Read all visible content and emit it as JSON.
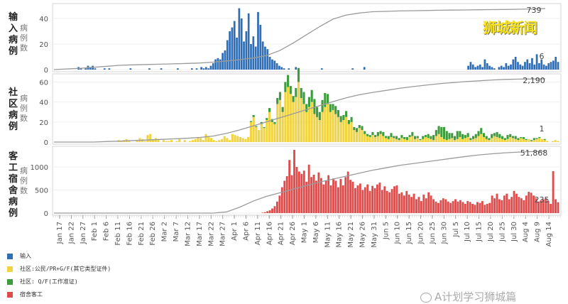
{
  "brand": "狮城新闻",
  "watermark": "A计划学习狮城篇",
  "colors": {
    "import": "#2f6eb5",
    "community_local": "#f0d443",
    "community_wp": "#3e9b3e",
    "dorm": "#de4b4b",
    "cumulative": "#9a9a9a"
  },
  "legend": [
    {
      "label": "输入",
      "color": "#2f6eb5"
    },
    {
      "label": "社区:公民/PR+G/F(其它类型证件)",
      "color": "#f0d443"
    },
    {
      "label": "社区: Q/F(工作准证)",
      "color": "#3e9b3e"
    },
    {
      "label": "宿舍客工",
      "color": "#de4b4b"
    }
  ],
  "chart_data": [
    {
      "type": "bar",
      "title": "输入病例",
      "ylabel": "病例数",
      "yticks": [
        0,
        20,
        40
      ],
      "ylim": [
        0,
        50
      ],
      "cumulative_label": "739",
      "last_value_label": "6",
      "x_start": "Jan 15",
      "x_end": "Aug 17",
      "series": [
        {
          "key": "import",
          "values": [
            0,
            0,
            0,
            0,
            0,
            0,
            0,
            0,
            0,
            0,
            2,
            1,
            0,
            1,
            3,
            2,
            3,
            1,
            0,
            0,
            0,
            1,
            0,
            1,
            0,
            0,
            0,
            0,
            0,
            0,
            0,
            0,
            1,
            0,
            0,
            0,
            0,
            0,
            0,
            0,
            1,
            0,
            0,
            0,
            0,
            1,
            0,
            0,
            0,
            0,
            0,
            0,
            1,
            0,
            0,
            0,
            0,
            0,
            1,
            0,
            1,
            0,
            2,
            1,
            2,
            1,
            3,
            5,
            8,
            9,
            8,
            13,
            15,
            23,
            30,
            33,
            38,
            25,
            48,
            40,
            22,
            30,
            44,
            20,
            26,
            18,
            45,
            35,
            22,
            18,
            16,
            10,
            8,
            7,
            5,
            3,
            2,
            1,
            0,
            1,
            0,
            0,
            2,
            0,
            0,
            0,
            0,
            0,
            0,
            0,
            0,
            0,
            0,
            1,
            0,
            0,
            0,
            0,
            0,
            0,
            0,
            0,
            0,
            0,
            0,
            0,
            1,
            0,
            0,
            0,
            0,
            2,
            0,
            0,
            0,
            0,
            0,
            0,
            0,
            0,
            0,
            0,
            0,
            0,
            0,
            0,
            0,
            0,
            0,
            0,
            0,
            0,
            0,
            0,
            0,
            0,
            0,
            0,
            0,
            0,
            0,
            0,
            0,
            0,
            0,
            0,
            0,
            0,
            0,
            0,
            0,
            0,
            0,
            0,
            0,
            3,
            6,
            4,
            2,
            3,
            4,
            2,
            8,
            5,
            3,
            2,
            1,
            0,
            2,
            3,
            2,
            5,
            3,
            4,
            8,
            10,
            6,
            4,
            3,
            6,
            8,
            5,
            9,
            4,
            12,
            5,
            8,
            4,
            3,
            5,
            6,
            7,
            10,
            6
          ]
        }
      ],
      "cumulative": [
        0,
        9,
        16,
        28,
        40,
        52,
        58,
        62,
        65,
        70,
        75,
        80,
        90,
        105,
        120,
        140,
        170,
        230,
        320,
        420,
        520,
        610,
        660,
        685,
        700,
        705,
        710,
        712,
        715,
        718,
        720,
        722,
        724,
        726,
        728,
        730,
        734,
        739
      ]
    },
    {
      "type": "bar",
      "title": "社区病例",
      "ylabel": "病例数",
      "yticks": [
        0,
        20,
        40,
        60
      ],
      "ylim": [
        0,
        66
      ],
      "cumulative_label": "2,190",
      "last_value_label": "1",
      "x_start": "Jan 15",
      "x_end": "Aug 17",
      "series": [
        {
          "key": "community_local",
          "values": [
            0,
            0,
            0,
            0,
            0,
            0,
            0,
            0,
            0,
            0,
            0,
            0,
            0,
            0,
            0,
            0,
            0,
            0,
            0,
            0,
            0,
            0,
            0,
            0,
            2,
            1,
            2,
            3,
            1,
            0,
            0,
            2,
            4,
            3,
            1,
            7,
            8,
            2,
            4,
            3,
            0,
            2,
            1,
            1,
            2,
            0,
            1,
            3,
            0,
            2,
            0,
            1,
            2,
            3,
            5,
            4,
            2,
            8,
            6,
            4,
            2,
            1,
            2,
            3,
            6,
            4,
            2,
            8,
            7,
            6,
            5,
            4,
            3,
            5,
            20,
            25,
            15,
            12,
            18,
            14,
            22,
            30,
            20,
            18,
            38,
            42,
            30,
            50,
            55,
            48,
            40,
            45,
            60,
            44,
            38,
            30,
            35,
            40,
            28,
            25,
            22,
            30,
            35,
            38,
            30,
            32,
            28,
            25,
            20,
            22,
            25,
            18,
            20,
            12,
            10,
            14,
            12,
            8,
            6,
            5,
            7,
            5,
            6,
            8,
            6,
            4,
            3,
            5,
            4,
            3,
            2,
            4,
            3,
            2,
            5,
            6,
            3,
            4,
            2,
            3,
            5,
            4,
            3,
            2,
            6,
            8,
            5,
            3,
            2,
            3,
            4,
            2,
            3,
            5,
            3,
            4,
            5,
            2,
            3,
            4,
            6,
            8,
            5,
            3,
            2,
            4,
            6,
            5,
            4,
            3,
            2,
            3,
            5,
            4,
            3,
            2,
            4,
            3,
            2,
            3,
            1,
            2,
            3,
            4,
            3,
            2,
            1,
            0,
            1,
            2,
            1
          ]
        },
        {
          "key": "community_wp",
          "values": [
            0,
            0,
            0,
            0,
            0,
            0,
            0,
            0,
            0,
            0,
            0,
            0,
            0,
            0,
            0,
            0,
            0,
            0,
            0,
            0,
            0,
            0,
            0,
            0,
            0,
            0,
            0,
            0,
            0,
            0,
            0,
            0,
            0,
            0,
            0,
            0,
            0,
            0,
            0,
            0,
            0,
            0,
            0,
            0,
            0,
            0,
            0,
            0,
            0,
            0,
            0,
            0,
            0,
            0,
            0,
            0,
            0,
            0,
            0,
            0,
            0,
            0,
            0,
            0,
            0,
            0,
            0,
            0,
            0,
            0,
            0,
            0,
            0,
            0,
            1,
            2,
            1,
            0,
            2,
            1,
            2,
            4,
            3,
            2,
            6,
            8,
            5,
            10,
            12,
            8,
            6,
            9,
            14,
            10,
            12,
            8,
            10,
            12,
            15,
            10,
            8,
            12,
            14,
            10,
            8,
            6,
            8,
            7,
            6,
            5,
            6,
            4,
            5,
            3,
            4,
            3,
            4,
            3,
            2,
            2,
            3,
            2,
            4,
            3,
            4,
            2,
            3,
            4,
            2,
            3,
            2,
            3,
            2,
            3,
            2,
            4,
            3,
            2,
            1,
            3,
            2,
            4,
            3,
            5,
            6,
            8,
            10,
            12,
            9,
            6,
            5,
            4,
            8,
            6,
            5,
            3,
            4,
            2,
            3,
            4,
            5,
            6,
            4,
            3,
            2,
            4,
            3,
            5,
            4,
            3,
            2,
            4,
            3,
            2,
            3,
            2,
            1,
            2,
            1,
            0,
            1,
            2,
            1,
            1,
            0,
            1,
            0,
            0,
            0,
            0,
            0
          ]
        }
      ],
      "cumulative": [
        0,
        0,
        0,
        0,
        20,
        35,
        55,
        70,
        90,
        110,
        130,
        160,
        210,
        300,
        420,
        560,
        700,
        840,
        980,
        1120,
        1260,
        1400,
        1530,
        1640,
        1720,
        1790,
        1860,
        1920,
        1970,
        2020,
        2060,
        2095,
        2120,
        2150,
        2170,
        2180,
        2186,
        2190
      ]
    },
    {
      "type": "bar",
      "title": "客工宿舍病例",
      "ylabel": "病例数",
      "yticks": [
        0,
        500,
        1000
      ],
      "ylim": [
        0,
        1400
      ],
      "cumulative_label": "51,868",
      "last_value_label": "235",
      "x_start": "Jan 15",
      "x_end": "Aug 17",
      "series": [
        {
          "key": "dorm",
          "values": [
            0,
            0,
            0,
            0,
            0,
            0,
            0,
            0,
            0,
            0,
            0,
            0,
            0,
            0,
            0,
            0,
            0,
            0,
            0,
            0,
            0,
            0,
            0,
            0,
            0,
            0,
            0,
            0,
            0,
            0,
            0,
            0,
            0,
            0,
            0,
            0,
            0,
            0,
            0,
            0,
            0,
            0,
            0,
            0,
            0,
            0,
            0,
            0,
            0,
            0,
            0,
            0,
            0,
            0,
            0,
            0,
            0,
            0,
            0,
            0,
            0,
            0,
            0,
            0,
            0,
            0,
            0,
            0,
            0,
            0,
            0,
            0,
            0,
            0,
            0,
            0,
            0,
            0,
            0,
            0,
            0,
            0,
            0,
            0,
            0,
            10,
            20,
            40,
            60,
            100,
            150,
            250,
            380,
            560,
            700,
            800,
            1150,
            820,
            1369,
            1000,
            900,
            850,
            920,
            680,
            1050,
            780,
            830,
            700,
            880,
            760,
            620,
            700,
            820,
            600,
            750,
            700,
            560,
            740,
            600,
            780,
            900,
            720,
            680,
            540,
            600,
            640,
            500,
            560,
            620,
            480,
            590,
            540,
            620,
            660,
            500,
            580,
            480,
            450,
            520,
            580,
            600,
            420,
            450,
            380,
            480,
            400,
            350,
            420,
            300,
            350,
            260,
            400,
            320,
            450,
            380,
            300,
            250,
            220,
            280,
            320,
            300,
            250,
            220,
            260,
            300,
            250,
            280,
            240,
            200,
            260,
            240,
            200,
            180,
            240,
            220,
            260,
            180,
            200,
            220,
            380,
            320,
            420,
            300,
            280,
            380,
            420,
            300,
            350,
            480,
            420,
            350,
            320,
            280,
            380,
            460,
            440,
            380,
            320,
            250,
            280,
            300,
            320,
            260,
            200,
            908,
            300,
            235
          ]
        }
      ],
      "cumulative": [
        0,
        0,
        0,
        0,
        0,
        0,
        0,
        0,
        0,
        0,
        0,
        0,
        0,
        1000,
        5000,
        10000,
        14000,
        17000,
        20000,
        23000,
        26000,
        28500,
        31000,
        33500,
        36000,
        38000,
        40000,
        41500,
        43000,
        44500,
        46000,
        47500,
        48800,
        49800,
        50600,
        51200,
        51600,
        51868
      ]
    }
  ],
  "x_axis": {
    "ticks": [
      "Jan 17",
      "Jan 22",
      "Jan 27",
      "Feb 1",
      "Feb 6",
      "Feb 11",
      "Feb 16",
      "Feb 21",
      "Feb 26",
      "Mar 2",
      "Mar 7",
      "Mar 12",
      "Mar 17",
      "Mar 22",
      "Mar 27",
      "Apr 1",
      "Apr 6",
      "Apr 11",
      "Apr 16",
      "Apr 21",
      "Apr 26",
      "May 1",
      "May 6",
      "May 11",
      "May 16",
      "May 21",
      "May 26",
      "May 31",
      "Jun 5",
      "Jun 10",
      "Jun 15",
      "Jun 20",
      "Jun 25",
      "Jun 30",
      "Jul 5",
      "Jul 10",
      "Jul 15",
      "Jul 20",
      "Jul 25",
      "Jul 30",
      "Aug 4",
      "Aug 9",
      "Aug 14"
    ]
  }
}
